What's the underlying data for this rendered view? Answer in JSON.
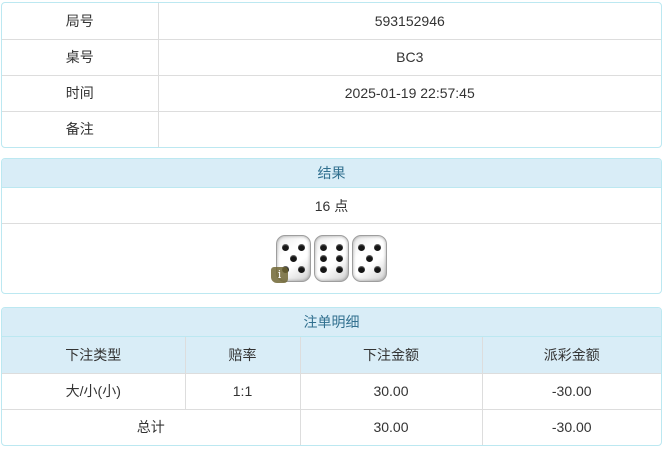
{
  "info_table": {
    "rows": [
      {
        "label": "局号",
        "value": "593152946"
      },
      {
        "label": "桌号",
        "value": "BC3"
      },
      {
        "label": "时间",
        "value": "2025-01-19 22:57:45"
      },
      {
        "label": "备注",
        "value": ""
      }
    ]
  },
  "result_panel": {
    "title": "结果",
    "points": "16 点",
    "dice": [
      5,
      6,
      5
    ],
    "info_icon": "i"
  },
  "bets_panel": {
    "title": "注单明细",
    "columns": [
      "下注类型",
      "赔率",
      "下注金额",
      "派彩金额"
    ],
    "rows": [
      {
        "type": "大/小(小)",
        "odds": "1:1",
        "amount": "30.00",
        "payout": "-30.00"
      }
    ],
    "total": {
      "label": "总计",
      "amount": "30.00",
      "payout": "-30.00"
    }
  },
  "colors": {
    "panel_border": "#bce8f1",
    "header_bg": "#d9edf7",
    "header_text": "#31708f",
    "cell_border": "#dddddd",
    "text": "#333333",
    "negative": "#f00000"
  }
}
